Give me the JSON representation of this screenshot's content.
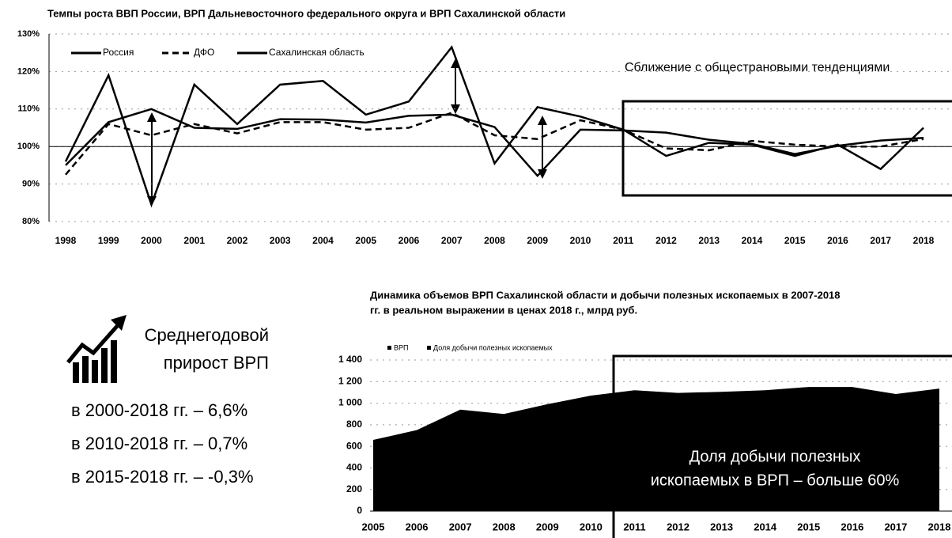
{
  "chart_data": [
    {
      "type": "line",
      "title": "Темпы роста ВВП России, ВРП Дальневосточного федерального округа и ВРП Сахалинской области",
      "categories": [
        "1998",
        "1999",
        "2000",
        "2001",
        "2002",
        "2003",
        "2004",
        "2005",
        "2006",
        "2007",
        "2008",
        "2009",
        "2010",
        "2011",
        "2012",
        "2013",
        "2014",
        "2015",
        "2016",
        "2017",
        "2018"
      ],
      "series": [
        {
          "name": "Россия",
          "color": "#000000",
          "dash": false,
          "values": [
            95,
            106.5,
            110,
            105,
            104.7,
            107.3,
            107.2,
            106.4,
            108.2,
            108.5,
            105.2,
            92.2,
            104.5,
            104.3,
            103.7,
            101.8,
            100.7,
            98,
            100.2,
            101.6,
            102.3
          ]
        },
        {
          "name": "ДФО",
          "color": "#000000",
          "dash": true,
          "values": [
            92.5,
            106,
            103,
            106,
            103.5,
            106.5,
            106.5,
            104.5,
            105,
            109,
            103,
            102,
            107,
            104.5,
            99.5,
            99,
            101.5,
            100.5,
            100,
            100,
            102
          ]
        },
        {
          "name": "Сахалинская область",
          "color": "#000000",
          "dash": false,
          "values": [
            96,
            119,
            84.5,
            116.5,
            106,
            116.5,
            117.5,
            108.5,
            112,
            126.5,
            95.5,
            110.5,
            108,
            104.5,
            97.5,
            101,
            100.5,
            97.5,
            100.5,
            94,
            105
          ]
        }
      ],
      "ylim": [
        80,
        130
      ],
      "yticks": [
        {
          "value": 80,
          "label": "80%"
        },
        {
          "value": 90,
          "label": "90%"
        },
        {
          "value": 100,
          "label": "100%"
        },
        {
          "value": 110,
          "label": "110%"
        },
        {
          "value": 120,
          "label": "120%"
        },
        {
          "value": 130,
          "label": "130%"
        }
      ],
      "baseline": 100,
      "grid": true,
      "annotation": "Сближение с общестрановыми тенденциями"
    },
    {
      "type": "area",
      "title": [
        "Динамика объемов ВРП Сахалинской области  и добычи полезных ископаемых в 2007-2018",
        "гг. в реальном выражении в ценах 2018 г., млрд руб."
      ],
      "legend": [
        "ВРП",
        "Доля добычи полезных ископаемых"
      ],
      "color": "#000000",
      "categories": [
        "2005",
        "2006",
        "2007",
        "2008",
        "2009",
        "2010",
        "2011",
        "2012",
        "2013",
        "2014",
        "2015",
        "2016",
        "2017",
        "2018"
      ],
      "values": [
        660,
        750,
        940,
        900,
        990,
        1070,
        1120,
        1095,
        1105,
        1120,
        1150,
        1150,
        1085,
        1135
      ],
      "ylim": [
        0,
        1400
      ],
      "yticks": [
        0,
        200,
        400,
        600,
        800,
        {
          "value": 1000,
          "label": "1 000"
        },
        {
          "value": 1200,
          "label": "1 200"
        },
        {
          "value": 1400,
          "label": "1 400"
        }
      ],
      "grid": true,
      "annotation": [
        "Доля добычи полезных",
        "ископаемых в ВРП – больше 60%"
      ]
    }
  ],
  "panel": {
    "heading": [
      "Среднегодовой",
      "прирост ВРП"
    ],
    "items": [
      "в 2000-2018 гг. – 6,6%",
      "в 2010-2018 гг. – 0,7%",
      "в 2015-2018 гг. – -0,3%"
    ]
  }
}
